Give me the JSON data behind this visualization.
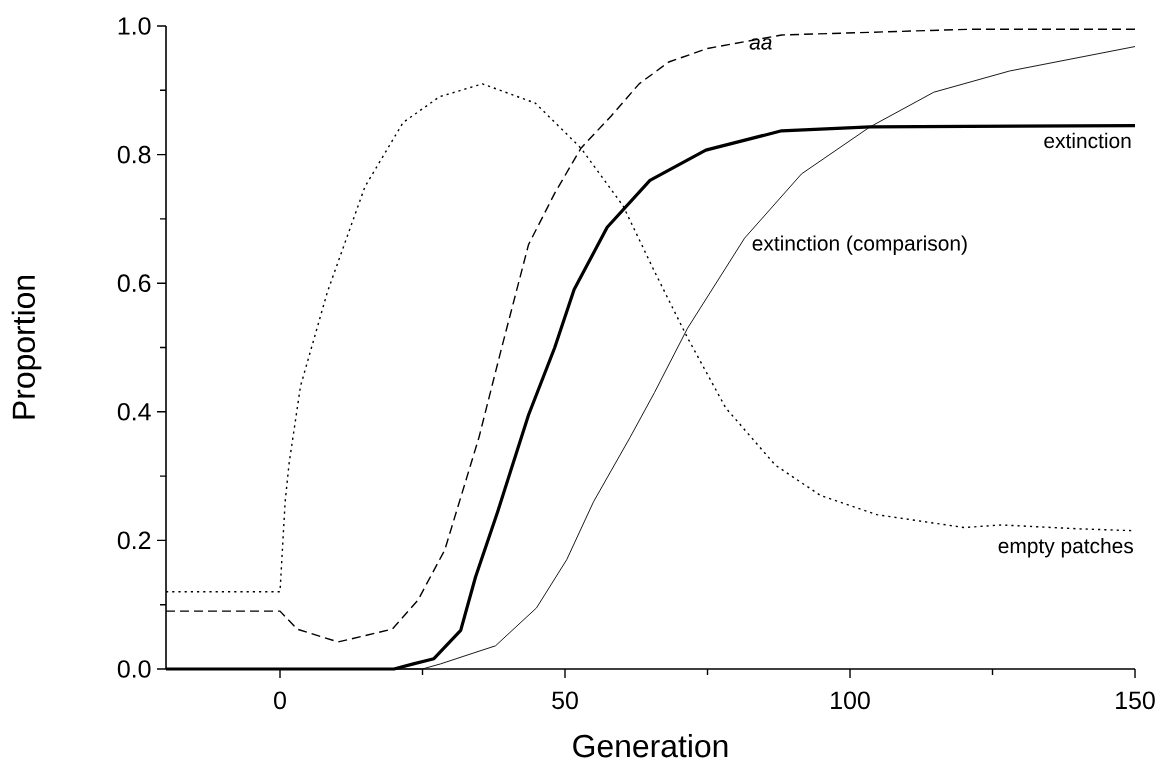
{
  "chart_data": {
    "type": "line",
    "xlabel": "Generation",
    "ylabel": "Proportion",
    "xlim": [
      -20,
      150
    ],
    "ylim": [
      0,
      1.0
    ],
    "xticks": [
      0,
      50,
      100,
      150
    ],
    "yticks": [
      {
        "value": 0,
        "label": "0.0"
      },
      {
        "value": 0.2,
        "label": "0.2"
      },
      {
        "value": 0.4,
        "label": "0.4"
      },
      {
        "value": 0.6,
        "label": "0.6"
      },
      {
        "value": 0.8,
        "label": "0.8"
      },
      {
        "value": 1.0,
        "label": "1.0"
      }
    ],
    "grid": false,
    "legend": false,
    "marker": "none",
    "series": [
      {
        "name": "empty patches",
        "color": "#000000",
        "line_style": "dotted",
        "x": [
          -20,
          0,
          0.9,
          1.6,
          3.6,
          8.3,
          14.9,
          21.6,
          28,
          35.5,
          44.8,
          52.8,
          60.2,
          65.6,
          71.5,
          78.2,
          86.9,
          94.8,
          104.7,
          120,
          126.6,
          140,
          150
        ],
        "values": [
          0.12,
          0.12,
          0.26,
          0.32,
          0.44,
          0.586,
          0.75,
          0.85,
          0.89,
          0.91,
          0.88,
          0.81,
          0.72,
          0.62,
          0.515,
          0.406,
          0.317,
          0.27,
          0.24,
          0.22,
          0.224,
          0.218,
          0.215
        ]
      },
      {
        "name": "aa",
        "color": "#000000",
        "line_style": "dashed",
        "x": [
          -20,
          0,
          3,
          10.2,
          19.7,
          24.2,
          28.9,
          34.9,
          38.9,
          43.6,
          48.2,
          52.8,
          58.1,
          63,
          68.2,
          75,
          88,
          121.5,
          150
        ],
        "values": [
          0.09,
          0.09,
          0.062,
          0.042,
          0.062,
          0.107,
          0.185,
          0.36,
          0.5,
          0.66,
          0.74,
          0.81,
          0.86,
          0.91,
          0.944,
          0.965,
          0.986,
          0.995,
          0.995
        ]
      },
      {
        "name": "extinction",
        "color": "#000000",
        "line_style": "solid",
        "x": [
          -20,
          20,
          23.4,
          27,
          31.7,
          34.3,
          38.2,
          43.6,
          48.2,
          51.6,
          57.4,
          64.9,
          74.7,
          88,
          103.5,
          150
        ],
        "values": [
          0,
          0,
          0.008,
          0.016,
          0.06,
          0.143,
          0.245,
          0.395,
          0.5,
          0.59,
          0.687,
          0.76,
          0.807,
          0.837,
          0.843,
          0.845
        ]
      },
      {
        "name": "extinction (comparison)",
        "color": "#000000",
        "line_style": "solid",
        "x": [
          -20,
          25,
          28.2,
          34,
          37.8,
          45,
          50.3,
          55,
          61.4,
          65.7,
          71.5,
          81.5,
          91.5,
          103.5,
          114.7,
          128,
          150
        ],
        "values": [
          0,
          0,
          0.008,
          0.025,
          0.036,
          0.095,
          0.17,
          0.26,
          0.36,
          0.43,
          0.53,
          0.67,
          0.77,
          0.843,
          0.897,
          0.93,
          0.968
        ]
      }
    ]
  }
}
